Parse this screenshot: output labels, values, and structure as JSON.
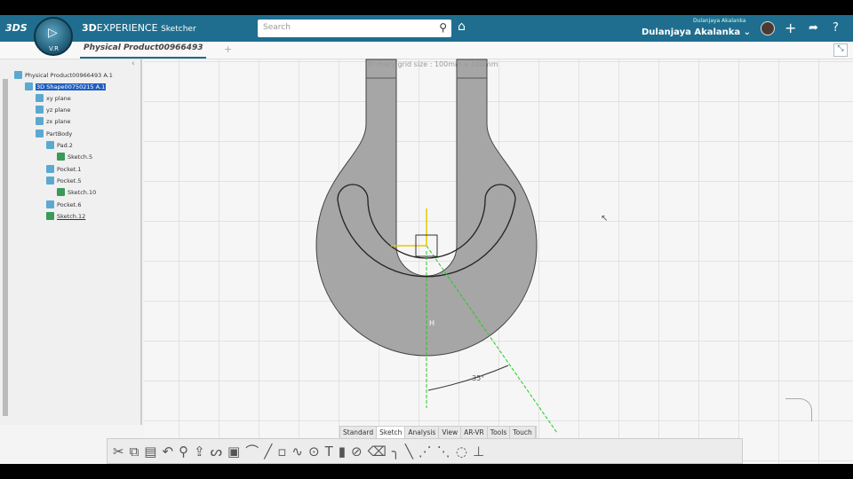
{
  "app": {
    "brand": "3DS",
    "title_bold": "3D",
    "title_main": "EXPERIENCE",
    "title_app": "Sketcher",
    "compass_version": "V.R"
  },
  "search": {
    "placeholder": "Search"
  },
  "user": {
    "small": "Dulanjaya Akalanka",
    "name": "Dulanjaya Akalanka ⌄"
  },
  "tab": {
    "label": "Physical Product00966493"
  },
  "tree": {
    "items": [
      {
        "label": "Physical Product00966493 A.1",
        "icon": "product-icon"
      },
      {
        "label": "3D Shape00750215 A.1",
        "icon": "shape-icon",
        "selected": true
      },
      {
        "label": "xy plane",
        "icon": "plane-icon"
      },
      {
        "label": "yz plane",
        "icon": "plane-icon"
      },
      {
        "label": "zx plane",
        "icon": "plane-icon"
      },
      {
        "label": "PartBody",
        "icon": "body-icon"
      },
      {
        "label": "Pad.2",
        "icon": "pad-icon"
      },
      {
        "label": "Sketch.5",
        "icon": "sketch-icon"
      },
      {
        "label": "Pocket.1",
        "icon": "pocket-icon"
      },
      {
        "label": "Pocket.5",
        "icon": "pocket-icon"
      },
      {
        "label": "Sketch.10",
        "icon": "sketch-icon"
      },
      {
        "label": "Pocket.6",
        "icon": "pocket-icon"
      },
      {
        "label": "Sketch.12",
        "icon": "sketch-icon"
      }
    ]
  },
  "canvas": {
    "grid_label": "Primary grid size : 100mm x 100mm",
    "constraint_label": "H",
    "angle_label": "35°",
    "shape_color": "#a6a6a6",
    "construction_color": "#22cc22"
  },
  "workbench_tabs": [
    "Standard",
    "Sketch",
    "Analysis",
    "View",
    "AR-VR",
    "Tools",
    "Touch"
  ],
  "workbench_active": "Sketch",
  "toolbar": [
    "cut-icon",
    "copy-icon",
    "paste-icon",
    "undo-icon",
    "view-icon",
    "export-icon",
    "profile-icon",
    "rectangle-icon",
    "arc-icon",
    "line-icon",
    "point-icon",
    "spline-icon",
    "oblong-icon",
    "text-icon",
    "constraint-icon",
    "clip-icon",
    "eraser-icon",
    "corner-icon",
    "chamfer-icon",
    "mirror-icon",
    "symmetry-icon",
    "project-icon",
    "axis-icon"
  ]
}
